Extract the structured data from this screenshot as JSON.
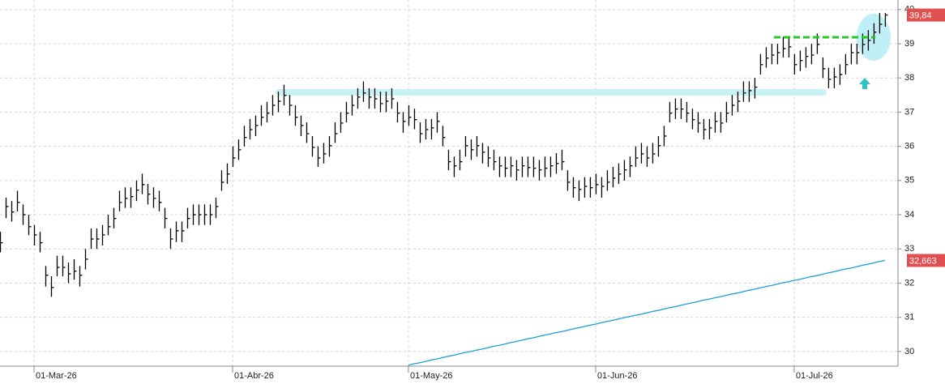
{
  "chart_data": {
    "type": "ohlc",
    "color": "#000000",
    "high": [
      33.5,
      34.5,
      34.4,
      34.7,
      34.3,
      34.0,
      33.7,
      33.5,
      32.5,
      32.2,
      32.8,
      32.8,
      32.6,
      32.7,
      32.5,
      33.0,
      33.6,
      33.6,
      33.7,
      34.0,
      34.2,
      34.7,
      34.8,
      34.8,
      35.0,
      35.2,
      34.9,
      34.8,
      34.7,
      34.2,
      33.6,
      33.8,
      33.8,
      34.2,
      34.3,
      34.3,
      34.3,
      34.3,
      34.5,
      35.3,
      35.5,
      36.0,
      36.2,
      36.6,
      36.8,
      36.9,
      37.2,
      37.3,
      37.5,
      37.6,
      37.8,
      37.5,
      37.2,
      36.9,
      36.7,
      36.3,
      36.0,
      36.1,
      36.3,
      36.7,
      37.0,
      37.3,
      37.5,
      37.7,
      37.9,
      37.7,
      37.7,
      37.6,
      37.6,
      37.7,
      37.3,
      37.0,
      37.2,
      37.1,
      36.7,
      36.8,
      36.8,
      37.0,
      36.6,
      35.9,
      35.7,
      35.9,
      36.3,
      36.2,
      36.3,
      36.1,
      36.0,
      35.9,
      35.7,
      35.7,
      35.7,
      35.6,
      35.7,
      35.7,
      35.7,
      35.6,
      35.7,
      35.7,
      35.8,
      35.9,
      35.3,
      35.1,
      35.0,
      35.1,
      35.1,
      35.2,
      35.1,
      35.3,
      35.4,
      35.5,
      35.6,
      35.7,
      36.0,
      36.1,
      36.0,
      36.1,
      36.3,
      36.6,
      37.3,
      37.4,
      37.4,
      37.3,
      37.1,
      37.0,
      36.8,
      36.8,
      37.0,
      37.0,
      37.3,
      37.5,
      37.6,
      37.9,
      37.9,
      38.0,
      38.7,
      38.9,
      39.0,
      39.0,
      39.2,
      39.2,
      38.7,
      38.8,
      38.9,
      39.0,
      39.3,
      38.6,
      38.3,
      38.3,
      38.4,
      38.7,
      39.0,
      39.0,
      39.3,
      39.4,
      39.6,
      39.9,
      39.9
    ],
    "low": [
      32.9,
      33.9,
      33.8,
      34.1,
      33.7,
      33.4,
      33.1,
      32.9,
      31.9,
      31.6,
      32.2,
      32.2,
      32.0,
      32.1,
      31.9,
      32.4,
      33.0,
      33.0,
      33.1,
      33.4,
      33.6,
      34.1,
      34.2,
      34.2,
      34.4,
      34.6,
      34.3,
      34.2,
      34.1,
      33.6,
      33.0,
      33.2,
      33.2,
      33.6,
      33.7,
      33.7,
      33.7,
      33.7,
      33.9,
      34.7,
      34.9,
      35.4,
      35.6,
      36.0,
      36.2,
      36.3,
      36.6,
      36.7,
      36.9,
      37.0,
      37.2,
      36.9,
      36.6,
      36.3,
      36.1,
      35.7,
      35.4,
      35.5,
      35.7,
      36.1,
      36.4,
      36.7,
      36.9,
      37.1,
      37.3,
      37.1,
      37.1,
      37.0,
      37.0,
      37.1,
      36.7,
      36.4,
      36.6,
      36.5,
      36.1,
      36.2,
      36.2,
      36.4,
      36.0,
      35.3,
      35.1,
      35.3,
      35.7,
      35.6,
      35.7,
      35.5,
      35.4,
      35.3,
      35.1,
      35.1,
      35.1,
      35.0,
      35.1,
      35.1,
      35.1,
      35.0,
      35.1,
      35.1,
      35.2,
      35.3,
      34.7,
      34.5,
      34.4,
      34.5,
      34.5,
      34.6,
      34.5,
      34.7,
      34.8,
      34.9,
      35.0,
      35.1,
      35.4,
      35.5,
      35.4,
      35.5,
      35.7,
      36.0,
      36.7,
      36.8,
      36.8,
      36.7,
      36.5,
      36.4,
      36.2,
      36.2,
      36.4,
      36.4,
      36.7,
      36.9,
      37.0,
      37.3,
      37.3,
      37.4,
      38.1,
      38.3,
      38.4,
      38.4,
      38.6,
      38.6,
      38.1,
      38.2,
      38.3,
      38.4,
      38.7,
      38.0,
      37.7,
      37.7,
      37.8,
      38.1,
      38.4,
      38.4,
      38.7,
      38.8,
      39.0,
      39.3,
      39.5
    ],
    "close": [
      33.18,
      34.24,
      34.08,
      34.36,
      34.0,
      33.65,
      33.41,
      33.18,
      32.23,
      31.87,
      32.46,
      32.46,
      32.27,
      32.35,
      32.23,
      32.7,
      33.29,
      33.29,
      33.41,
      33.65,
      33.89,
      34.36,
      34.48,
      34.53,
      34.72,
      34.88,
      34.6,
      34.48,
      34.36,
      33.89,
      33.29,
      33.53,
      33.53,
      33.89,
      34.0,
      34.0,
      34.0,
      34.0,
      34.24,
      34.95,
      35.19,
      35.66,
      35.9,
      36.26,
      36.49,
      36.61,
      36.85,
      36.97,
      37.2,
      37.32,
      37.49,
      37.2,
      36.85,
      36.61,
      36.37,
      35.97,
      35.66,
      35.78,
      36.02,
      36.37,
      36.68,
      36.97,
      37.2,
      37.44,
      37.56,
      37.44,
      37.39,
      37.25,
      37.32,
      37.39,
      36.97,
      36.73,
      36.85,
      36.78,
      36.37,
      36.49,
      36.54,
      36.73,
      36.26,
      35.55,
      35.43,
      35.55,
      36.02,
      35.9,
      36.02,
      35.83,
      35.66,
      35.55,
      35.43,
      35.36,
      35.43,
      35.31,
      35.43,
      35.38,
      35.36,
      35.31,
      35.36,
      35.43,
      35.5,
      35.55,
      34.95,
      34.79,
      34.74,
      34.83,
      34.79,
      34.88,
      34.83,
      34.95,
      35.07,
      35.19,
      35.31,
      35.43,
      35.66,
      35.78,
      35.66,
      35.78,
      36.02,
      36.3,
      36.97,
      37.09,
      37.09,
      36.97,
      36.78,
      36.68,
      36.49,
      36.54,
      36.73,
      36.68,
      36.97,
      37.2,
      37.32,
      37.56,
      37.63,
      37.73,
      38.39,
      38.58,
      38.67,
      38.74,
      38.86,
      38.91,
      38.39,
      38.51,
      38.63,
      38.67,
      38.98,
      38.27,
      37.96,
      38.03,
      38.1,
      38.39,
      38.74,
      38.74,
      38.98,
      39.1,
      39.34,
      39.57,
      39.84
    ],
    "ma": {
      "color": "#1a9fd6",
      "values": [
        null,
        null,
        null,
        null,
        null,
        null,
        null,
        null,
        null,
        null,
        null,
        null,
        null,
        null,
        null,
        null,
        null,
        null,
        null,
        null,
        null,
        null,
        null,
        null,
        null,
        null,
        null,
        null,
        null,
        null,
        null,
        null,
        null,
        null,
        null,
        null,
        null,
        null,
        null,
        null,
        null,
        null,
        null,
        null,
        null,
        null,
        null,
        null,
        null,
        null,
        null,
        null,
        null,
        null,
        null,
        null,
        null,
        null,
        null,
        null,
        null,
        null,
        null,
        null,
        null,
        null,
        null,
        null,
        null,
        null,
        null,
        null,
        29.6,
        29.64,
        29.67,
        29.71,
        29.75,
        29.78,
        29.82,
        29.86,
        29.89,
        29.93,
        29.97,
        30.0,
        30.04,
        30.07,
        30.11,
        30.15,
        30.18,
        30.22,
        30.26,
        30.29,
        30.33,
        30.37,
        30.4,
        30.44,
        30.48,
        30.51,
        30.55,
        30.58,
        30.62,
        30.66,
        30.69,
        30.73,
        30.77,
        30.8,
        30.84,
        30.88,
        30.91,
        30.95,
        30.99,
        31.02,
        31.06,
        31.09,
        31.13,
        31.17,
        31.2,
        31.24,
        31.28,
        31.31,
        31.35,
        31.39,
        31.42,
        31.46,
        31.5,
        31.53,
        31.57,
        31.6,
        31.64,
        31.68,
        31.71,
        31.75,
        31.79,
        31.82,
        31.86,
        31.9,
        31.93,
        31.97,
        32.01,
        32.04,
        32.08,
        32.11,
        32.15,
        32.19,
        32.22,
        32.26,
        32.3,
        32.33,
        32.37,
        32.41,
        32.44,
        32.48,
        32.52,
        32.55,
        32.59,
        32.63,
        32.663
      ]
    },
    "last_price": {
      "value": 39.84,
      "label": "39,84"
    },
    "ma_last": {
      "value": 32.663,
      "label": "32,663"
    },
    "ylim": [
      29.57,
      40.28
    ],
    "yticks": [
      30,
      31,
      32,
      33,
      34,
      35,
      36,
      37,
      38,
      39,
      40
    ],
    "xlim": [
      0,
      158.3
    ],
    "xticks": [
      {
        "value": 6,
        "label": "01-Mar-26"
      },
      {
        "value": 41,
        "label": "01-Abr-26"
      },
      {
        "value": 72,
        "label": "01-May-26"
      },
      {
        "value": 105,
        "label": "01-Jun-26"
      },
      {
        "value": 140,
        "label": "01-Jul-26"
      }
    ],
    "grid": true
  }
}
